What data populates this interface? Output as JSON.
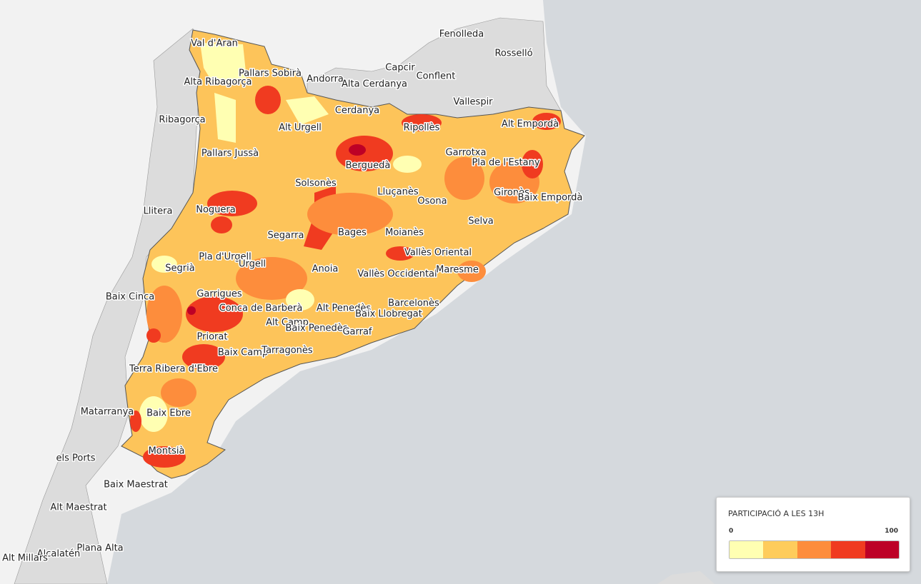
{
  "labels": [
    "Fenolleda",
    "Rosselló",
    "Val d'Aran",
    "Capcir",
    "Conflent",
    "Pallars Sobirà",
    "Andorra",
    "Alta Ribagorça",
    "Alta Cerdanya",
    "Vallespir",
    "Cerdanya",
    "Ribagorça",
    "Alt Empordà",
    "Ripollès",
    "Alt Urgell",
    "Pallars Jussà",
    "Garrotxa",
    "Berguedà",
    "Pla de l'Estany",
    "Solsonès",
    "Lluçanès",
    "Gironès",
    "Baix Empordà",
    "Osona",
    "Noguera",
    "Llitera",
    "Selva",
    "Bages",
    "Moianès",
    "Segarra",
    "Vallès Oriental",
    "Pla d'Urgell",
    "Urgell",
    "Segrià",
    "Anoia",
    "Vallès Occidental",
    "Maresme",
    "Baix Cinca",
    "Garrigues",
    "Barcelonès",
    "Conca de Barberà",
    "Alt Penedès",
    "Baix Llobregat",
    "Alt Camp",
    "Baix Penedès",
    "Garraf",
    "Priorat",
    "Baix Camp",
    "Tarragonès",
    "Terra Ribera d'Ebre",
    "Matarranya",
    "Baix Ebre",
    "Montsià",
    "els Ports",
    "Baix Maestrat",
    "Alt Maestrat",
    "Plana Alta",
    "Alcalatén",
    "Alt Millars"
  ],
  "legend": {
    "title": "PARTICIPACIÓ A LES 13H",
    "min": 0,
    "max": 100,
    "colors": [
      "#ffffb2",
      "#fecc5c",
      "#fd8d3c",
      "#f03b20",
      "#bd0026"
    ]
  }
}
